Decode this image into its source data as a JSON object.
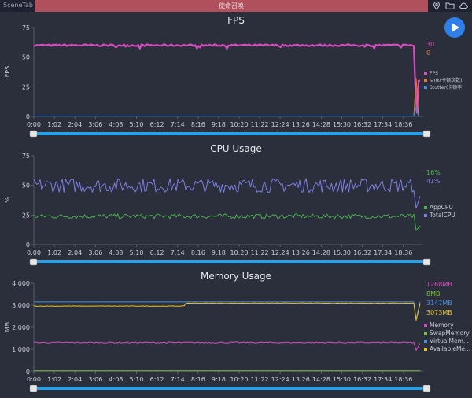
{
  "topbar": {
    "app_name": "SceneTab",
    "scene_title": "使命召唤",
    "icons": [
      "location-pin-icon",
      "folder-icon",
      "cloud-icon"
    ]
  },
  "play_button": {
    "icon": "play-icon",
    "color": "#2f7fe6"
  },
  "x_ticks": [
    "0:00",
    "1:02",
    "2:04",
    "3:06",
    "4:08",
    "5:10",
    "6:12",
    "7:14",
    "8:16",
    "9:18",
    "10:20",
    "11:22",
    "12:24",
    "13:26",
    "14:28",
    "15:30",
    "16:32",
    "17:34",
    "18:36"
  ],
  "charts": {
    "fps": {
      "title": "FPS",
      "ylabel": "FPS",
      "yticks": [
        "0",
        "25",
        "50",
        "75"
      ],
      "current_values": [
        "30",
        "0"
      ],
      "current_colors": [
        "#d44fbe",
        "#e8772e"
      ],
      "legend": [
        {
          "label": "FPS",
          "color": "#d44fbe"
        },
        {
          "label": "Jank(卡顿次数)",
          "color": "#e8772e"
        },
        {
          "label": "Stutter(卡顿率)",
          "color": "#3b8de8"
        }
      ]
    },
    "cpu": {
      "title": "CPU Usage",
      "ylabel": "%",
      "yticks": [
        "0",
        "25",
        "50",
        "75"
      ],
      "current_values": [
        "16%",
        "41%"
      ],
      "current_colors": [
        "#4caf50",
        "#7b7fe0"
      ],
      "legend": [
        {
          "label": "AppCPU",
          "color": "#4caf50"
        },
        {
          "label": "TotalCPU",
          "color": "#7b7fe0"
        }
      ]
    },
    "memory": {
      "title": "Memory Usage",
      "ylabel": "MB",
      "yticks": [
        "0",
        "1,000",
        "2,000",
        "3,000",
        "4,000"
      ],
      "current_values": [
        "1268MB",
        "8MB",
        "3147MB",
        "3073MB"
      ],
      "current_colors": [
        "#d44fbe",
        "#7cc23a",
        "#4a8fe6",
        "#e6c229"
      ],
      "legend": [
        {
          "label": "Memory",
          "color": "#d44fbe"
        },
        {
          "label": "SwapMemory",
          "color": "#7cc23a"
        },
        {
          "label": "VirtualMem...",
          "color": "#4a8fe6"
        },
        {
          "label": "AvailableMe...",
          "color": "#e6c229"
        }
      ]
    }
  },
  "chart_data": [
    {
      "type": "line",
      "title": "FPS",
      "ylabel": "FPS",
      "xlabel": "",
      "ylim": [
        0,
        75
      ],
      "x_range": [
        "0:00",
        "18:36"
      ],
      "series": [
        {
          "name": "FPS",
          "typical_value": 60,
          "final_value": 30
        },
        {
          "name": "Jank(卡顿次数)",
          "typical_value": 0,
          "final_value": 0
        },
        {
          "name": "Stutter(卡顿率)",
          "typical_value": 0,
          "final_value": 0
        }
      ],
      "legend": "right"
    },
    {
      "type": "line",
      "title": "CPU Usage",
      "ylabel": "%",
      "xlabel": "",
      "ylim": [
        0,
        75
      ],
      "x_range": [
        "0:00",
        "18:36"
      ],
      "series": [
        {
          "name": "AppCPU",
          "typical_value": 24,
          "final_value": 16
        },
        {
          "name": "TotalCPU",
          "typical_value": 50,
          "final_value": 41
        }
      ],
      "legend": "right"
    },
    {
      "type": "line",
      "title": "Memory Usage",
      "ylabel": "MB",
      "xlabel": "",
      "ylim": [
        0,
        4000
      ],
      "x_range": [
        "0:00",
        "18:36"
      ],
      "series": [
        {
          "name": "Memory",
          "typical_value": 1300,
          "final_value": 1268
        },
        {
          "name": "SwapMemory",
          "typical_value": 8,
          "final_value": 8
        },
        {
          "name": "VirtualMem...",
          "typical_value": 3147,
          "final_value": 3147
        },
        {
          "name": "AvailableMe...",
          "typical_value": 3100,
          "final_value": 3073
        }
      ],
      "legend": "right"
    }
  ]
}
